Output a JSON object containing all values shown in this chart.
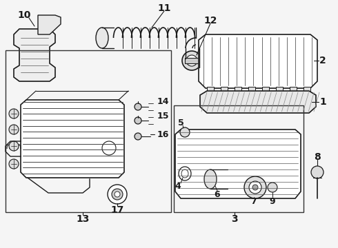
{
  "bg_color": "#f5f5f5",
  "line_color": "#1a1a1a",
  "fig_width": 4.9,
  "fig_height": 3.6,
  "dpi": 100
}
